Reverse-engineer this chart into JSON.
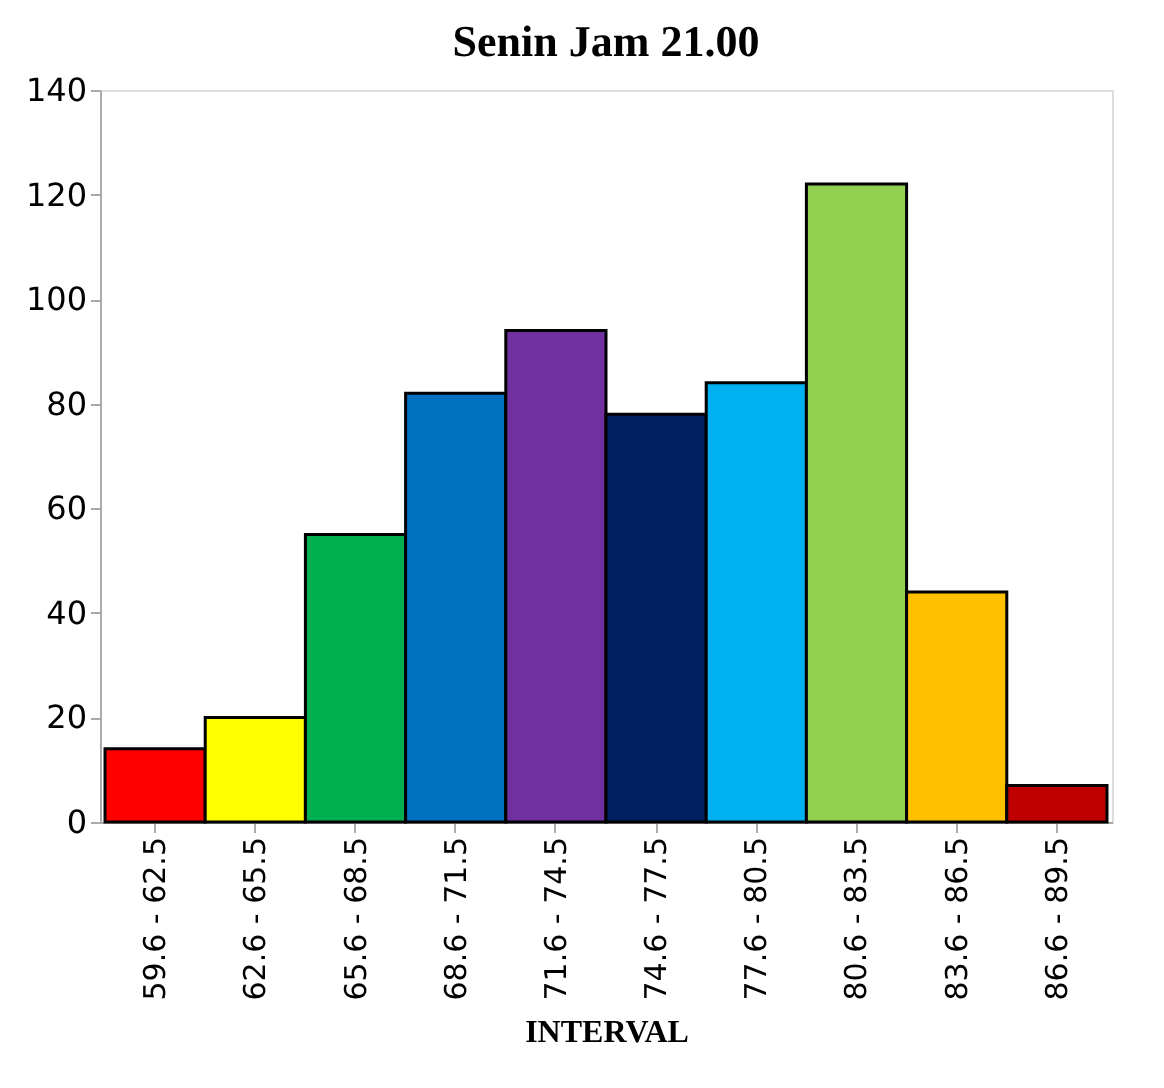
{
  "chart_data": {
    "type": "bar",
    "title": "Senin Jam 21.00",
    "xlabel": "INTERVAL",
    "categories": [
      "59.6 - 62.5",
      "62.6 - 65.5",
      "65.6 - 68.5",
      "68.6 - 71.5",
      "71.6 - 74.5",
      "74.6 - 77.5",
      "77.6 - 80.5",
      "80.6 - 83.5",
      "83.6 - 86.5",
      "86.6 - 89.5"
    ],
    "values": [
      14,
      20,
      55,
      82,
      94,
      78,
      84,
      122,
      44,
      7
    ],
    "colors": [
      "#ff0000",
      "#ffff00",
      "#00b050",
      "#0070c0",
      "#7030a0",
      "#002060",
      "#00b0f0",
      "#92d050",
      "#ffc000",
      "#c00000"
    ],
    "ylim": [
      0,
      140
    ],
    "yticks": [
      0,
      20,
      40,
      60,
      80,
      100,
      120,
      140
    ],
    "grid": false,
    "legend": false
  }
}
